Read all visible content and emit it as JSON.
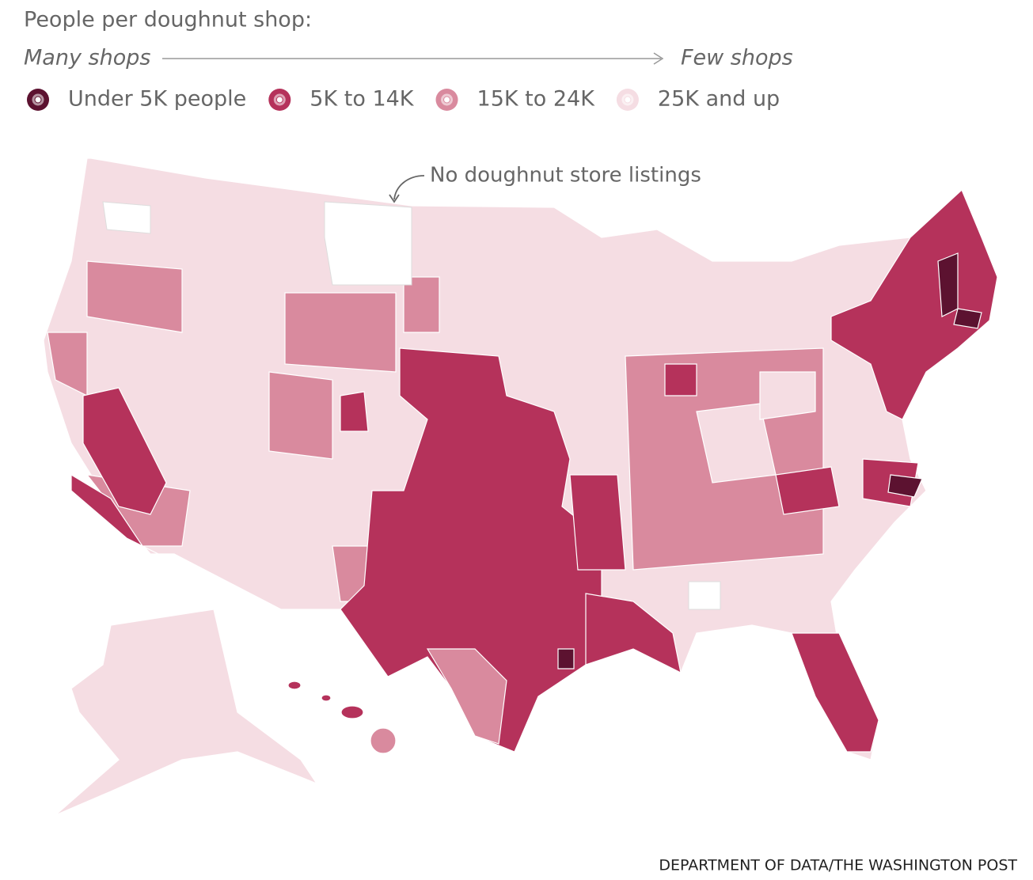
{
  "title": "People per doughnut shop:",
  "scale": {
    "left": "Many shops",
    "right": "Few shops"
  },
  "legend": [
    {
      "label": "Under 5K people",
      "color": "#5c1230"
    },
    {
      "label": "5K to 14K",
      "color": "#b5325b"
    },
    {
      "label": "15K to 24K",
      "color": "#d98a9e"
    },
    {
      "label": "25K and up",
      "color": "#f5dde3"
    }
  ],
  "annotation": "No doughnut store listings",
  "source": "DEPARTMENT OF DATA/THE WASHINGTON POST"
}
